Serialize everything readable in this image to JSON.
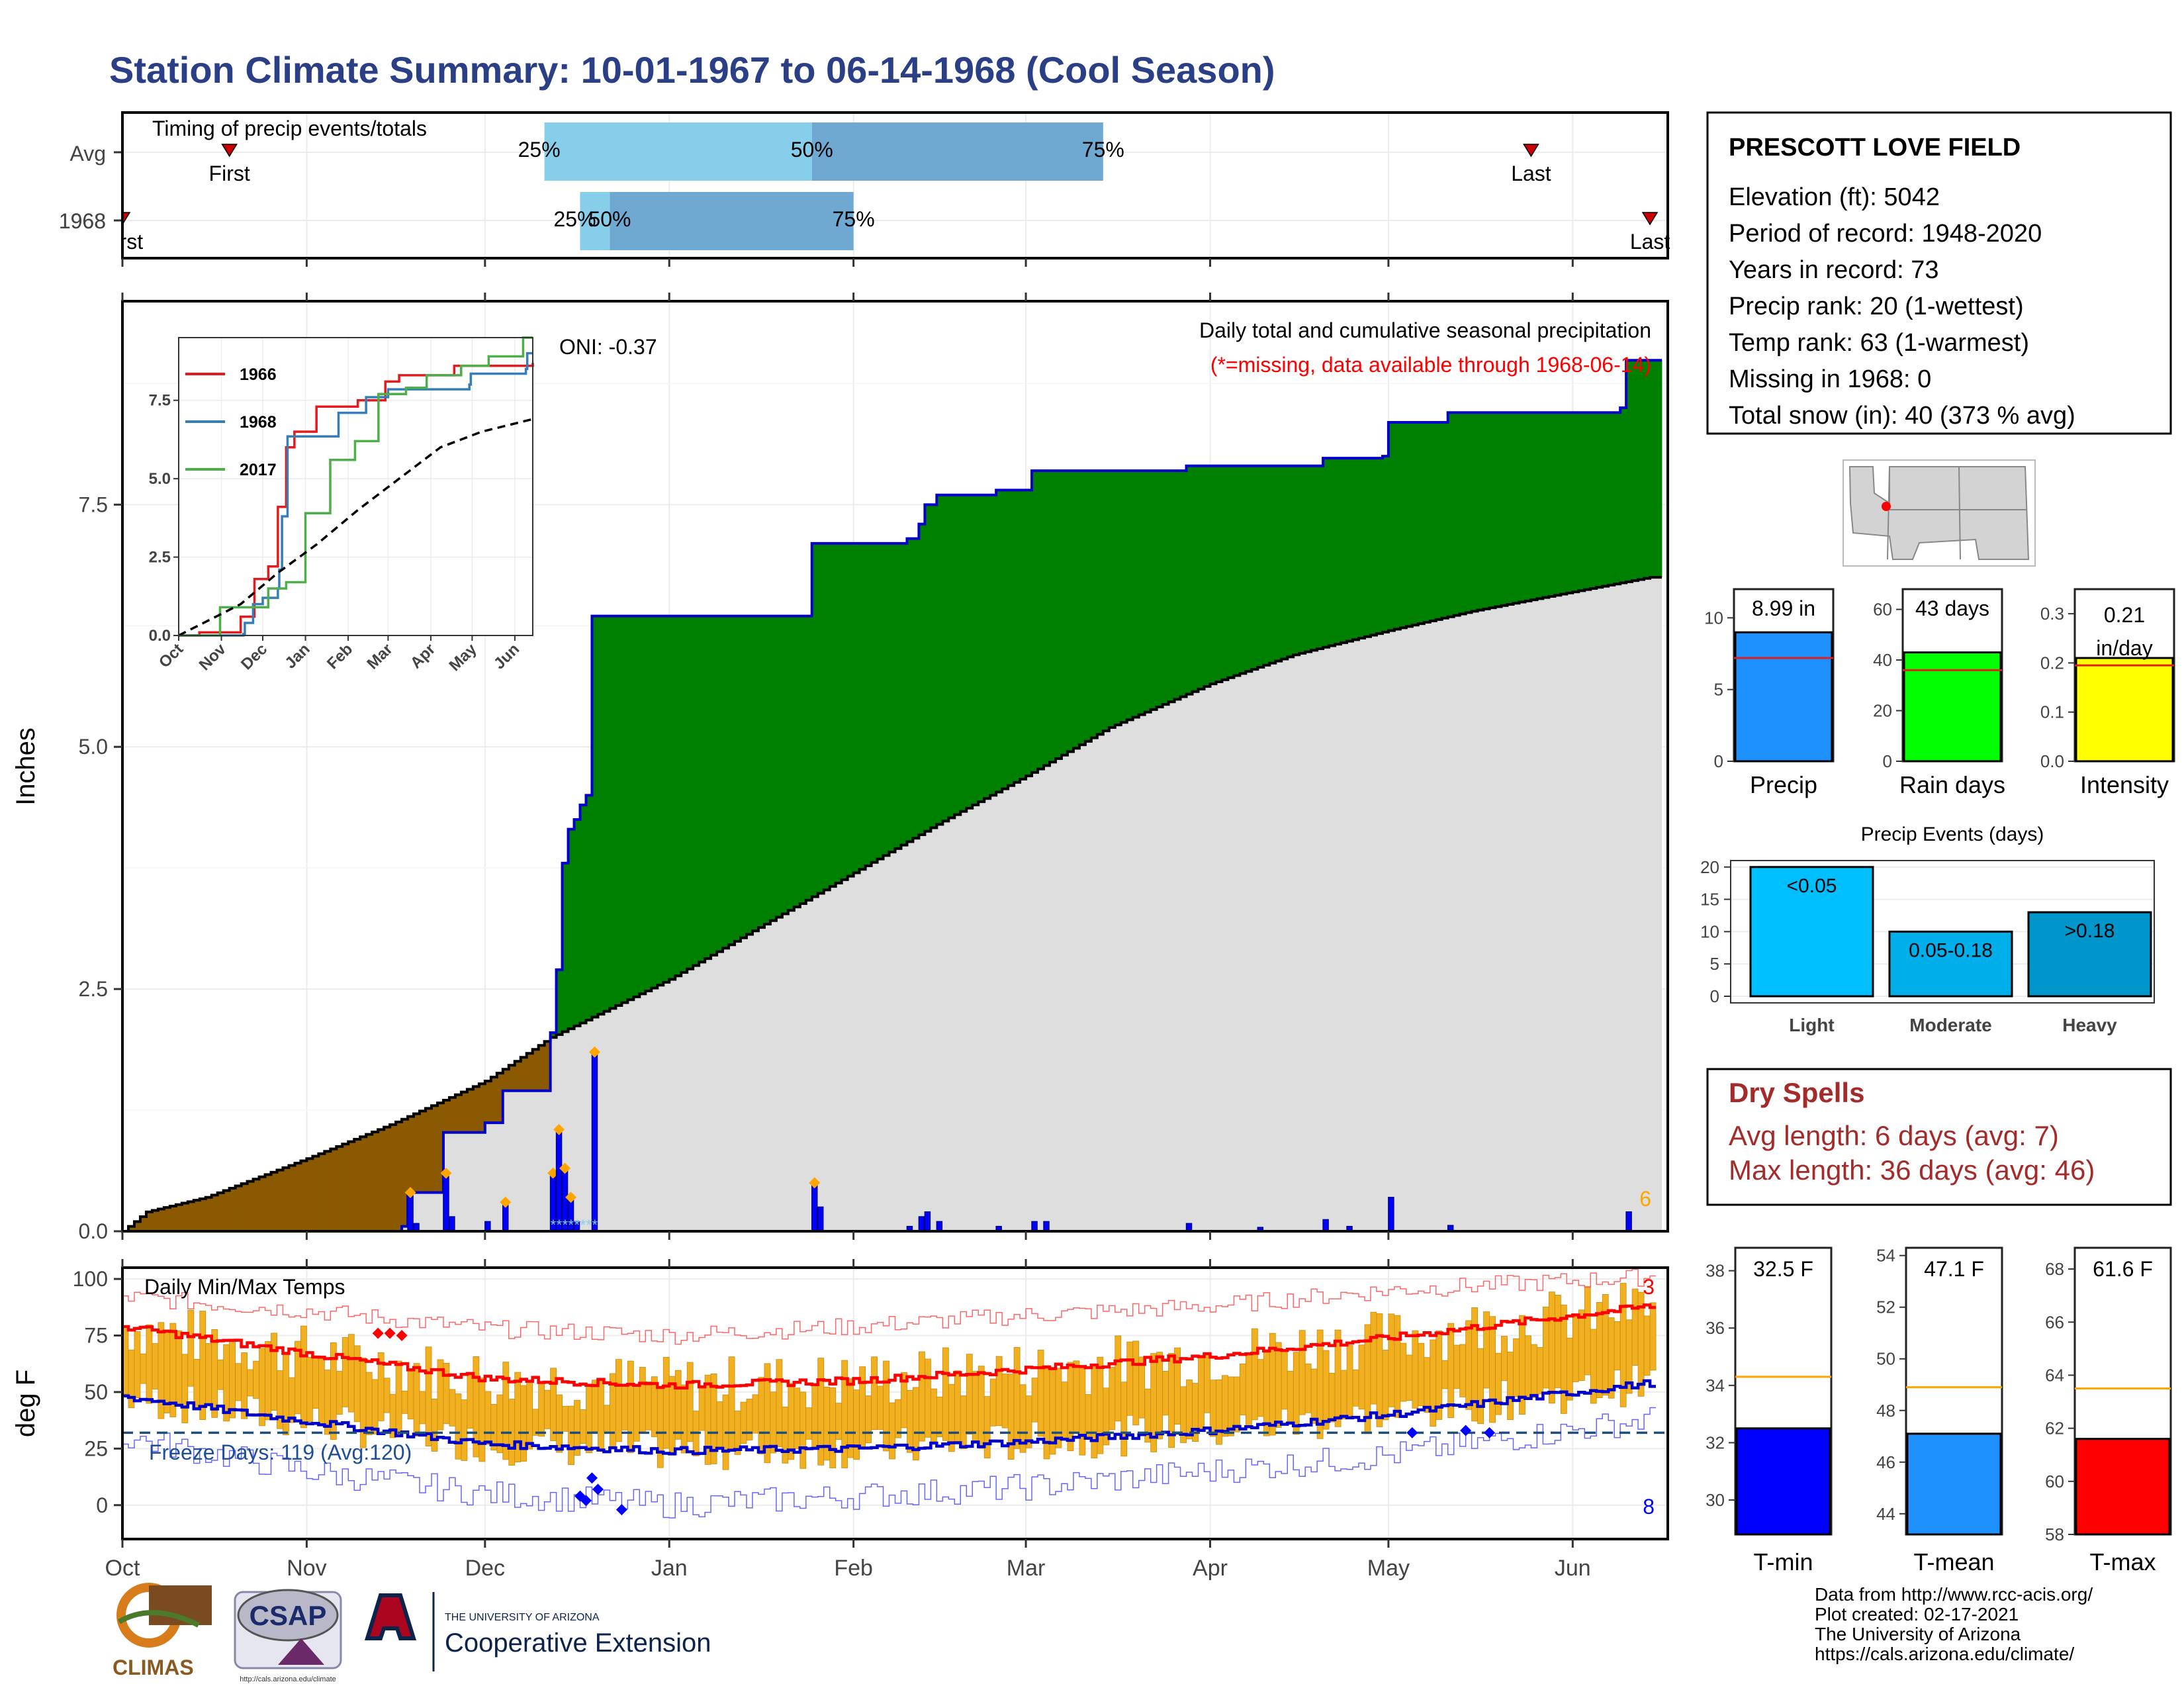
{
  "title": "Station Climate Summary: 10-01-1967 to 06-14-1968 (Cool Season)",
  "timing_panel": {
    "label": "Timing of precip events/totals",
    "rows": [
      {
        "name": "Avg",
        "first_day": 18,
        "last_day": 237,
        "q25_day": 71,
        "q50_day": 116,
        "q75_day": 165,
        "first_label": "First",
        "last_label": "Last",
        "q25_label": "25%",
        "q50_label": "50%",
        "q75_label": "75%"
      },
      {
        "name": "1968",
        "first_day": 0,
        "last_day": 257,
        "q25_day": 77,
        "q50_day": 82,
        "q75_day": 123,
        "first_label": "First",
        "last_label": "Last",
        "q25_label": "25%",
        "q50_label": "50%",
        "q75_label": "75%"
      }
    ]
  },
  "precip_panel": {
    "ylabel": "Inches",
    "caption": "Daily total and cumulative seasonal precipitation",
    "missing_note": "(*=missing, data available through 1968-06-14)",
    "oni_label": "ONI: -0.37",
    "corner_label": "6",
    "y_ticks": [
      "0.0",
      "2.5",
      "5.0",
      "7.5"
    ]
  },
  "inset": {
    "legend": [
      "1966",
      "1968",
      "2017"
    ],
    "legend_colors": [
      "#e41a1c",
      "#377eb8",
      "#4daf4a"
    ],
    "y_ticks": [
      "0.0",
      "2.5",
      "5.0",
      "7.5"
    ],
    "x_ticks": [
      "Oct",
      "Nov",
      "Dec",
      "Jan",
      "Feb",
      "Mar",
      "Apr",
      "May",
      "Jun"
    ]
  },
  "temp_panel": {
    "ylabel": "deg F",
    "label": "Daily Min/Max Temps",
    "freeze_label": "Freeze Days: 119 (Avg:120)",
    "record_high_count": "3",
    "record_low_count": "8",
    "y_ticks": [
      "0",
      "25",
      "50",
      "75",
      "100"
    ]
  },
  "x_axis": {
    "ticks": [
      "Oct",
      "Nov",
      "Dec",
      "Jan",
      "Feb",
      "Mar",
      "Apr",
      "May",
      "Jun"
    ]
  },
  "station_info": {
    "name": "PRESCOTT LOVE FIELD",
    "lines": [
      "Elevation (ft): 5042",
      "Period of record: 1948-2020",
      "Years in record: 73",
      "Precip rank: 20 (1-wettest)",
      "Temp rank: 63 (1-warmest)",
      "Missing in 1968: 0",
      "Total snow (in): 40 (373 % avg)"
    ]
  },
  "summary_bars": [
    {
      "label": "Precip",
      "value_text": "8.99 in",
      "ticks": [
        "0",
        "5",
        "10"
      ],
      "color": "#1e90ff"
    },
    {
      "label": "Rain days",
      "value_text": "43 days",
      "ticks": [
        "0",
        "20",
        "40",
        "60"
      ],
      "color": "#00ff00"
    },
    {
      "label": "Intensity",
      "value_text": "0.21",
      "value_unit": "in/day",
      "ticks": [
        "0.0",
        "0.1",
        "0.2",
        "0.3"
      ],
      "color": "#ffff00"
    }
  ],
  "events_panel": {
    "title": "Precip Events (days)",
    "categories": [
      "Light",
      "Moderate",
      "Heavy"
    ],
    "bar_labels": [
      "<0.05",
      "0.05-0.18",
      ">0.18"
    ],
    "values": [
      20,
      10,
      13
    ],
    "colors": [
      "#00bfff",
      "#00aeea",
      "#0096cc"
    ],
    "y_ticks": [
      "0",
      "5",
      "10",
      "15",
      "20"
    ]
  },
  "dry_spells": {
    "title": "Dry Spells",
    "avg_line": "Avg length: 6 days (avg: 7)",
    "max_line": "Max length: 36 days (avg: 46)"
  },
  "temp_bars": [
    {
      "label": "T-min",
      "value_text": "32.5 F",
      "ticks": [
        "30",
        "32",
        "34",
        "36",
        "38"
      ],
      "color": "#0000ff"
    },
    {
      "label": "T-mean",
      "value_text": "47.1 F",
      "ticks": [
        "44",
        "46",
        "48",
        "50",
        "52",
        "54"
      ],
      "color": "#1e90ff"
    },
    {
      "label": "T-max",
      "value_text": "61.6 F",
      "ticks": [
        "58",
        "60",
        "62",
        "64",
        "66",
        "68"
      ],
      "color": "#ff0000"
    }
  ],
  "credits": [
    "Data from http://www.rcc-acis.org/",
    "Plot created: 02-17-2021",
    "The University of Arizona",
    "https://cals.arizona.edu/climate/"
  ],
  "logos": {
    "climas": "CLIMAS",
    "csap": "CSAP",
    "csap_url": "http://cals.arizona.edu/climate",
    "ua_top": "THE UNIVERSITY OF ARIZONA",
    "ua_bottom": "Cooperative Extension"
  },
  "chart_data": {
    "type": "area",
    "x_unit": "date",
    "x_range": [
      "1967-10-01",
      "1968-06-14"
    ],
    "ylim": [
      0,
      9.6
    ],
    "cumulative_1968": [
      {
        "date": "1967-10-01",
        "value": 0.0
      },
      {
        "date": "1967-11-17",
        "value": 0.05
      },
      {
        "date": "1967-11-18",
        "value": 0.4
      },
      {
        "date": "1967-11-24",
        "value": 1.02
      },
      {
        "date": "1967-12-01",
        "value": 1.12
      },
      {
        "date": "1967-12-04",
        "value": 1.45
      },
      {
        "date": "1967-12-11",
        "value": 1.45
      },
      {
        "date": "1967-12-12",
        "value": 2.05
      },
      {
        "date": "1967-12-13",
        "value": 2.7
      },
      {
        "date": "1967-12-14",
        "value": 3.8
      },
      {
        "date": "1967-12-15",
        "value": 4.15
      },
      {
        "date": "1967-12-16",
        "value": 4.25
      },
      {
        "date": "1967-12-17",
        "value": 4.4
      },
      {
        "date": "1967-12-18",
        "value": 4.5
      },
      {
        "date": "1967-12-19",
        "value": 6.35
      },
      {
        "date": "1968-01-24",
        "value": 6.35
      },
      {
        "date": "1968-01-25",
        "value": 7.1
      },
      {
        "date": "1968-02-10",
        "value": 7.15
      },
      {
        "date": "1968-02-12",
        "value": 7.3
      },
      {
        "date": "1968-02-13",
        "value": 7.5
      },
      {
        "date": "1968-02-15",
        "value": 7.6
      },
      {
        "date": "1968-02-25",
        "value": 7.65
      },
      {
        "date": "1968-03-02",
        "value": 7.85
      },
      {
        "date": "1968-03-27",
        "value": 7.85
      },
      {
        "date": "1968-03-28",
        "value": 7.9
      },
      {
        "date": "1968-04-20",
        "value": 7.98
      },
      {
        "date": "1968-04-30",
        "value": 8.0
      },
      {
        "date": "1968-05-01",
        "value": 8.35
      },
      {
        "date": "1968-05-11",
        "value": 8.45
      },
      {
        "date": "1968-06-09",
        "value": 8.5
      },
      {
        "date": "1968-06-10",
        "value": 8.99
      },
      {
        "date": "1968-06-14",
        "value": 8.99
      }
    ],
    "cumulative_avg": [
      {
        "date": "1967-10-01",
        "value": 0.0
      },
      {
        "date": "1967-10-05",
        "value": 0.2
      },
      {
        "date": "1967-10-15",
        "value": 0.35
      },
      {
        "date": "1967-11-01",
        "value": 0.75
      },
      {
        "date": "1967-11-15",
        "value": 1.1
      },
      {
        "date": "1967-12-01",
        "value": 1.55
      },
      {
        "date": "1967-12-12",
        "value": 2.0
      },
      {
        "date": "1968-01-01",
        "value": 2.6
      },
      {
        "date": "1968-01-15",
        "value": 3.1
      },
      {
        "date": "1968-02-01",
        "value": 3.7
      },
      {
        "date": "1968-02-15",
        "value": 4.2
      },
      {
        "date": "1968-03-01",
        "value": 4.7
      },
      {
        "date": "1968-03-15",
        "value": 5.2
      },
      {
        "date": "1968-04-01",
        "value": 5.65
      },
      {
        "date": "1968-04-15",
        "value": 5.95
      },
      {
        "date": "1968-05-01",
        "value": 6.2
      },
      {
        "date": "1968-05-15",
        "value": 6.4
      },
      {
        "date": "1968-06-01",
        "value": 6.6
      },
      {
        "date": "1968-06-14",
        "value": 6.75
      }
    ],
    "daily_precip": [
      {
        "date": "1967-11-18",
        "value": 0.4
      },
      {
        "date": "1967-11-19",
        "value": 0.08
      },
      {
        "date": "1967-11-24",
        "value": 0.6
      },
      {
        "date": "1967-11-25",
        "value": 0.15
      },
      {
        "date": "1967-12-01",
        "value": 0.1
      },
      {
        "date": "1967-12-04",
        "value": 0.3
      },
      {
        "date": "1967-12-12",
        "value": 0.6
      },
      {
        "date": "1967-12-13",
        "value": 1.05
      },
      {
        "date": "1967-12-14",
        "value": 0.65
      },
      {
        "date": "1967-12-15",
        "value": 0.35
      },
      {
        "date": "1967-12-16",
        "value": 0.1
      },
      {
        "date": "1967-12-19",
        "value": 1.85
      },
      {
        "date": "1968-01-25",
        "value": 0.5
      },
      {
        "date": "1968-01-26",
        "value": 0.25
      },
      {
        "date": "1968-02-10",
        "value": 0.05
      },
      {
        "date": "1968-02-12",
        "value": 0.15
      },
      {
        "date": "1968-02-13",
        "value": 0.2
      },
      {
        "date": "1968-02-15",
        "value": 0.1
      },
      {
        "date": "1968-02-25",
        "value": 0.05
      },
      {
        "date": "1968-03-02",
        "value": 0.1
      },
      {
        "date": "1968-03-04",
        "value": 0.1
      },
      {
        "date": "1968-03-28",
        "value": 0.08
      },
      {
        "date": "1968-04-09",
        "value": 0.04
      },
      {
        "date": "1968-04-20",
        "value": 0.12
      },
      {
        "date": "1968-04-24",
        "value": 0.05
      },
      {
        "date": "1968-05-01",
        "value": 0.35
      },
      {
        "date": "1968-05-11",
        "value": 0.06
      },
      {
        "date": "1968-06-10",
        "value": 0.2
      }
    ],
    "temp_avg_max": [
      {
        "date": "1967-10-01",
        "value": 79
      },
      {
        "date": "1967-11-01",
        "value": 67
      },
      {
        "date": "1967-12-01",
        "value": 56
      },
      {
        "date": "1968-01-01",
        "value": 53
      },
      {
        "date": "1968-02-01",
        "value": 55
      },
      {
        "date": "1968-03-01",
        "value": 60
      },
      {
        "date": "1968-04-01",
        "value": 66
      },
      {
        "date": "1968-05-01",
        "value": 74
      },
      {
        "date": "1968-06-14",
        "value": 88
      }
    ],
    "temp_avg_min": [
      {
        "date": "1967-10-01",
        "value": 48
      },
      {
        "date": "1967-11-01",
        "value": 37
      },
      {
        "date": "1967-12-01",
        "value": 27
      },
      {
        "date": "1968-01-01",
        "value": 24
      },
      {
        "date": "1968-02-01",
        "value": 25
      },
      {
        "date": "1968-03-01",
        "value": 28
      },
      {
        "date": "1968-04-01",
        "value": 33
      },
      {
        "date": "1968-05-01",
        "value": 40
      },
      {
        "date": "1968-06-14",
        "value": 54
      }
    ],
    "temp_record_high": [
      {
        "date": "1967-10-01",
        "value": 92
      },
      {
        "date": "1967-11-01",
        "value": 86
      },
      {
        "date": "1967-12-01",
        "value": 78
      },
      {
        "date": "1968-01-01",
        "value": 75
      },
      {
        "date": "1968-02-01",
        "value": 79
      },
      {
        "date": "1968-03-01",
        "value": 84
      },
      {
        "date": "1968-04-01",
        "value": 88
      },
      {
        "date": "1968-05-01",
        "value": 95
      },
      {
        "date": "1968-06-14",
        "value": 101
      }
    ],
    "temp_record_low": [
      {
        "date": "1967-10-01",
        "value": 30
      },
      {
        "date": "1967-11-01",
        "value": 15
      },
      {
        "date": "1967-12-01",
        "value": 5
      },
      {
        "date": "1968-01-01",
        "value": 0
      },
      {
        "date": "1968-02-01",
        "value": 4
      },
      {
        "date": "1968-03-01",
        "value": 8
      },
      {
        "date": "1968-04-01",
        "value": 15
      },
      {
        "date": "1968-05-01",
        "value": 22
      },
      {
        "date": "1968-06-14",
        "value": 38
      }
    ],
    "freeze_line": 32,
    "inset_series": [
      {
        "name": "1966",
        "points": [
          [
            0,
            0
          ],
          [
            15,
            0.1
          ],
          [
            45,
            0.6
          ],
          [
            55,
            1.8
          ],
          [
            65,
            2.2
          ],
          [
            72,
            4.1
          ],
          [
            78,
            6.0
          ],
          [
            84,
            6.5
          ],
          [
            100,
            7.3
          ],
          [
            130,
            7.5
          ],
          [
            150,
            8.1
          ],
          [
            160,
            8.3
          ],
          [
            200,
            8.6
          ],
          [
            257,
            8.7
          ]
        ]
      },
      {
        "name": "1968",
        "points": [
          [
            0,
            0
          ],
          [
            47,
            0.05
          ],
          [
            48,
            0.4
          ],
          [
            54,
            1.0
          ],
          [
            61,
            1.2
          ],
          [
            72,
            1.5
          ],
          [
            73,
            2.1
          ],
          [
            75,
            3.8
          ],
          [
            79,
            6.35
          ],
          [
            115,
            6.35
          ],
          [
            116,
            7.1
          ],
          [
            136,
            7.6
          ],
          [
            152,
            7.85
          ],
          [
            211,
            8.0
          ],
          [
            212,
            8.35
          ],
          [
            252,
            8.5
          ],
          [
            253,
            9.0
          ],
          [
            257,
            9.0
          ]
        ]
      },
      {
        "name": "2017",
        "points": [
          [
            0,
            0
          ],
          [
            30,
            0.9
          ],
          [
            65,
            1.5
          ],
          [
            78,
            1.7
          ],
          [
            92,
            3.9
          ],
          [
            110,
            5.6
          ],
          [
            128,
            6.2
          ],
          [
            145,
            7.7
          ],
          [
            165,
            7.9
          ],
          [
            180,
            8.3
          ],
          [
            205,
            8.6
          ],
          [
            225,
            8.9
          ],
          [
            250,
            9.5
          ],
          [
            257,
            9.5
          ]
        ]
      },
      {
        "name": "Avg",
        "points": [
          [
            0,
            0
          ],
          [
            45,
            1.0
          ],
          [
            72,
            2.0
          ],
          [
            100,
            2.9
          ],
          [
            130,
            4.0
          ],
          [
            160,
            5.0
          ],
          [
            190,
            6.0
          ],
          [
            220,
            6.5
          ],
          [
            257,
            6.9
          ]
        ]
      }
    ],
    "map": {
      "region": "Southwestern US",
      "marker": "Prescott, AZ"
    }
  }
}
